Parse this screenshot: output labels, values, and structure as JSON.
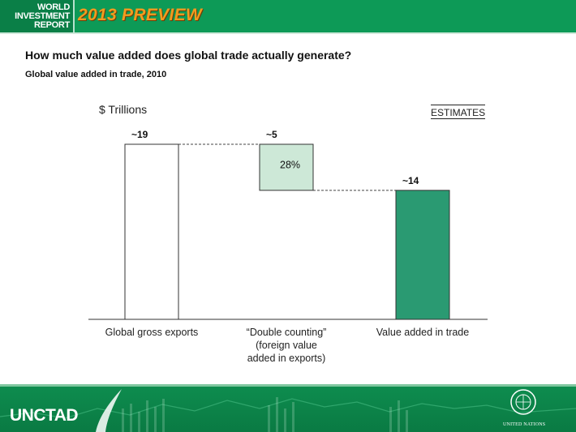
{
  "header": {
    "logo_lines": [
      "WORLD",
      "INVESTMENT",
      "REPORT"
    ],
    "preview_label": "2013 PREVIEW",
    "accent_color": "#0d9a57"
  },
  "title": "How much value added does global trade actually generate?",
  "subtitle": "Global value added in trade, 2010",
  "unit_label": "$ Trillions",
  "estimates_label": "ESTIMATES",
  "chart_data": {
    "type": "bar",
    "subtype": "waterfall",
    "unit": "$ Trillions",
    "categories": [
      "Global gross exports",
      "“Double counting” (foreign value added in exports)",
      "Value added in trade"
    ],
    "category_lines": [
      [
        "Global gross exports"
      ],
      [
        "“Double counting”",
        "(foreign value",
        "added in exports)"
      ],
      [
        "Value added in trade"
      ]
    ],
    "values": [
      19,
      5,
      14
    ],
    "value_labels": [
      "~19",
      "~5",
      "~14"
    ],
    "bar_ranges": [
      [
        0,
        19
      ],
      [
        14,
        19
      ],
      [
        0,
        14
      ]
    ],
    "inner_labels": [
      "",
      "28%",
      ""
    ],
    "colors": [
      "#ffffff",
      "#cde8d7",
      "#2a9a72"
    ],
    "ylim": [
      0,
      19
    ],
    "grid": false
  },
  "footer": {
    "brand": "UNCTAD",
    "un_label": "UNITED NATIONS"
  }
}
